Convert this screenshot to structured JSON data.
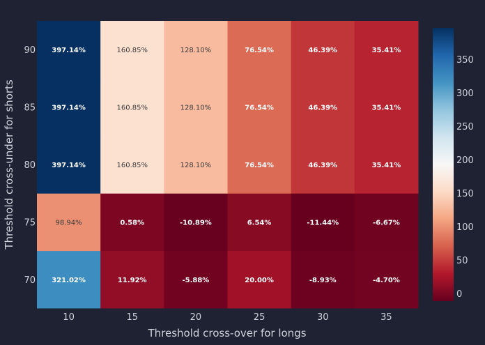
{
  "chart_data": {
    "type": "heatmap",
    "title": "",
    "xlabel": "Threshold cross-over for longs",
    "ylabel": "Threshold cross-under for shorts",
    "x": [
      10,
      15,
      20,
      25,
      30,
      35
    ],
    "y": [
      70,
      75,
      80,
      85,
      90
    ],
    "values": [
      [
        321.02,
        11.92,
        -5.88,
        20.0,
        -8.93,
        -4.7
      ],
      [
        98.94,
        0.58,
        -10.89,
        6.54,
        -11.44,
        -6.67
      ],
      [
        397.14,
        160.85,
        128.1,
        76.54,
        46.39,
        35.41
      ],
      [
        397.14,
        160.85,
        128.1,
        76.54,
        46.39,
        35.41
      ],
      [
        397.14,
        160.85,
        128.1,
        76.54,
        46.39,
        35.41
      ]
    ],
    "labels": [
      [
        "321.02%",
        "11.92%",
        "-5.88%",
        "20.00%",
        "-8.93%",
        "-4.70%"
      ],
      [
        "98.94%",
        "0.58%",
        "-10.89%",
        "6.54%",
        "-11.44%",
        "-6.67%"
      ],
      [
        "397.14%",
        "160.85%",
        "128.10%",
        "76.54%",
        "46.39%",
        "35.41%"
      ],
      [
        "397.14%",
        "160.85%",
        "128.10%",
        "76.54%",
        "46.39%",
        "35.41%"
      ],
      [
        "397.14%",
        "160.85%",
        "128.10%",
        "76.54%",
        "46.39%",
        "35.41%"
      ]
    ],
    "colorscale": "RdBu",
    "zlim": [
      -11.44,
      397.14
    ],
    "colorbar_ticks": [
      0,
      50,
      100,
      150,
      200,
      250,
      300,
      350
    ]
  },
  "colors": {
    "background": "#1f2233",
    "text": "#cfd3dc"
  }
}
